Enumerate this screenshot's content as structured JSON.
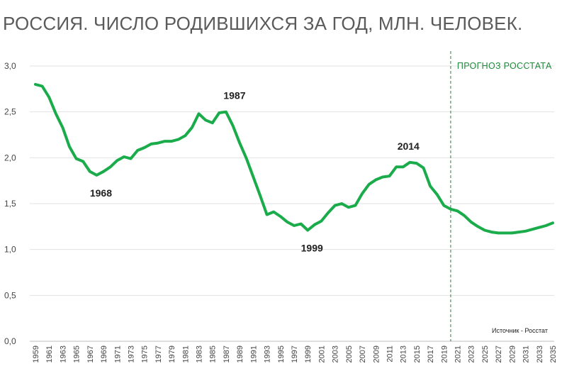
{
  "title": "РОССИЯ. ЧИСЛО РОДИВШИХСЯ ЗА ГОД, МЛН. ЧЕЛОВЕК.",
  "forecast_label": "ПРОГНОЗ РОССТАТА",
  "source": "Источник - Росстат",
  "colors": {
    "line": "#1aab4a",
    "grid": "#e2e2e2",
    "forecast_line": "#2e7d3e"
  },
  "chart_data": {
    "type": "line",
    "title": "РОССИЯ. ЧИСЛО РОДИВШИХСЯ ЗА ГОД, МЛН. ЧЕЛОВЕК.",
    "xlabel": "",
    "ylabel": "",
    "ylim": [
      0,
      3.0
    ],
    "xlim": [
      1959,
      2035
    ],
    "yticks": [
      "0,0",
      "0,5",
      "1,0",
      "1,5",
      "2,0",
      "2,5",
      "3,0"
    ],
    "xticks": [
      "1959",
      "1961",
      "1963",
      "1965",
      "1967",
      "1969",
      "1971",
      "1973",
      "1975",
      "1977",
      "1979",
      "1981",
      "1983",
      "1985",
      "1987",
      "1989",
      "1991",
      "1993",
      "1995",
      "1997",
      "1999",
      "2001",
      "2003",
      "2005",
      "2007",
      "2009",
      "2011",
      "2013",
      "2015",
      "2017",
      "2019",
      "2021",
      "2023",
      "2025",
      "2027",
      "2029",
      "2031",
      "2033",
      "2035"
    ],
    "grid": true,
    "forecast_start": 2020,
    "annotations": [
      {
        "label": "1968",
        "x": 1968,
        "y": 1.81
      },
      {
        "label": "1987",
        "x": 1987,
        "y": 2.5
      },
      {
        "label": "1999",
        "x": 1999,
        "y": 1.21
      },
      {
        "label": "2014",
        "x": 2014,
        "y": 1.95
      }
    ],
    "series": [
      {
        "x": [
          1959,
          1960,
          1961,
          1962,
          1963,
          1964,
          1965,
          1966,
          1967,
          1968,
          1969,
          1970,
          1971,
          1972,
          1973,
          1974,
          1975,
          1976,
          1977,
          1978,
          1979,
          1980,
          1981,
          1982,
          1983,
          1984,
          1985,
          1986,
          1987,
          1988,
          1989,
          1990,
          1991,
          1992,
          1993,
          1994,
          1995,
          1996,
          1997,
          1998,
          1999,
          2000,
          2001,
          2002,
          2003,
          2004,
          2005,
          2006,
          2007,
          2008,
          2009,
          2010,
          2011,
          2012,
          2013,
          2014,
          2015,
          2016,
          2017,
          2018,
          2019,
          2020,
          2021,
          2022,
          2023,
          2024,
          2025,
          2026,
          2027,
          2028,
          2029,
          2030,
          2031,
          2032,
          2033,
          2034,
          2035
        ],
        "values": [
          2.8,
          2.78,
          2.66,
          2.48,
          2.33,
          2.12,
          1.99,
          1.96,
          1.85,
          1.81,
          1.85,
          1.9,
          1.97,
          2.01,
          1.99,
          2.08,
          2.11,
          2.15,
          2.16,
          2.18,
          2.18,
          2.2,
          2.24,
          2.33,
          2.48,
          2.41,
          2.38,
          2.49,
          2.5,
          2.35,
          2.16,
          1.99,
          1.79,
          1.59,
          1.38,
          1.41,
          1.36,
          1.3,
          1.26,
          1.28,
          1.21,
          1.27,
          1.31,
          1.4,
          1.48,
          1.5,
          1.46,
          1.48,
          1.61,
          1.71,
          1.76,
          1.79,
          1.8,
          1.9,
          1.9,
          1.95,
          1.94,
          1.89,
          1.69,
          1.6,
          1.48,
          1.44,
          1.42,
          1.37,
          1.3,
          1.25,
          1.21,
          1.19,
          1.18,
          1.18,
          1.18,
          1.19,
          1.2,
          1.22,
          1.24,
          1.26,
          1.29
        ]
      }
    ]
  }
}
